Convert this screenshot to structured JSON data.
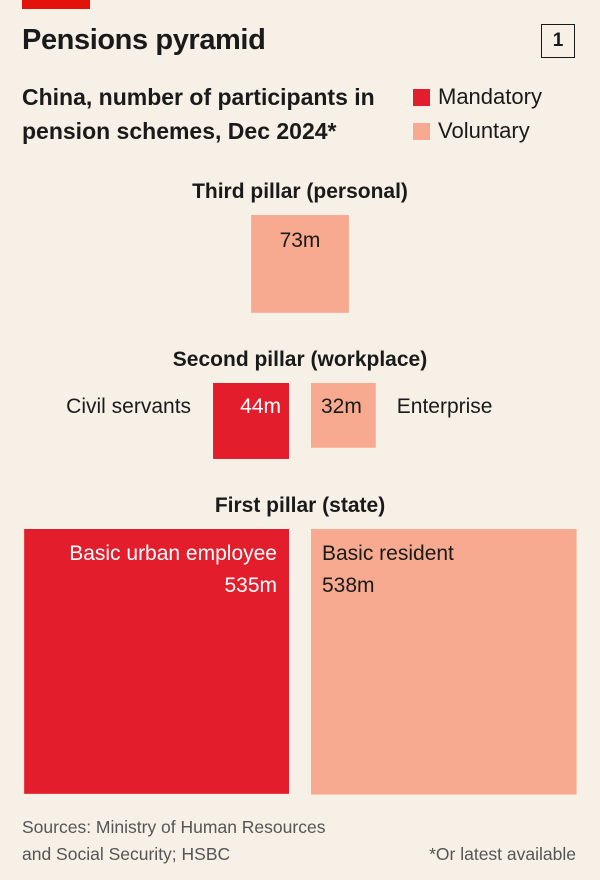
{
  "title": "Pensions pyramid",
  "chart_number": "1",
  "subtitle": "China, number of participants in pension schemes, Dec 2024*",
  "legend": [
    {
      "label": "Mandatory",
      "color": "#e31d2b"
    },
    {
      "label": "Voluntary",
      "color": "#f7aa8f"
    }
  ],
  "chart_data": {
    "type": "proportional-area",
    "unit": "m",
    "pillars": [
      {
        "label": "Third pillar (personal)",
        "schemes": [
          {
            "name": "",
            "value": 73,
            "value_label": "73m",
            "category": "Voluntary"
          }
        ]
      },
      {
        "label": "Second pillar (workplace)",
        "schemes": [
          {
            "name": "Civil servants",
            "value": 44,
            "value_label": "44m",
            "category": "Mandatory"
          },
          {
            "name": "Enterprise",
            "value": 32,
            "value_label": "32m",
            "category": "Voluntary"
          }
        ]
      },
      {
        "label": "First pillar (state)",
        "schemes": [
          {
            "name": "Basic urban employee",
            "value": 535,
            "value_label": "535m",
            "category": "Mandatory"
          },
          {
            "name": "Basic resident",
            "value": 538,
            "value_label": "538m",
            "category": "Voluntary"
          }
        ]
      }
    ]
  },
  "source": [
    "Sources: Ministry of Human Resources",
    "and Social Security; HSBC"
  ],
  "footnote": "*Or latest available"
}
